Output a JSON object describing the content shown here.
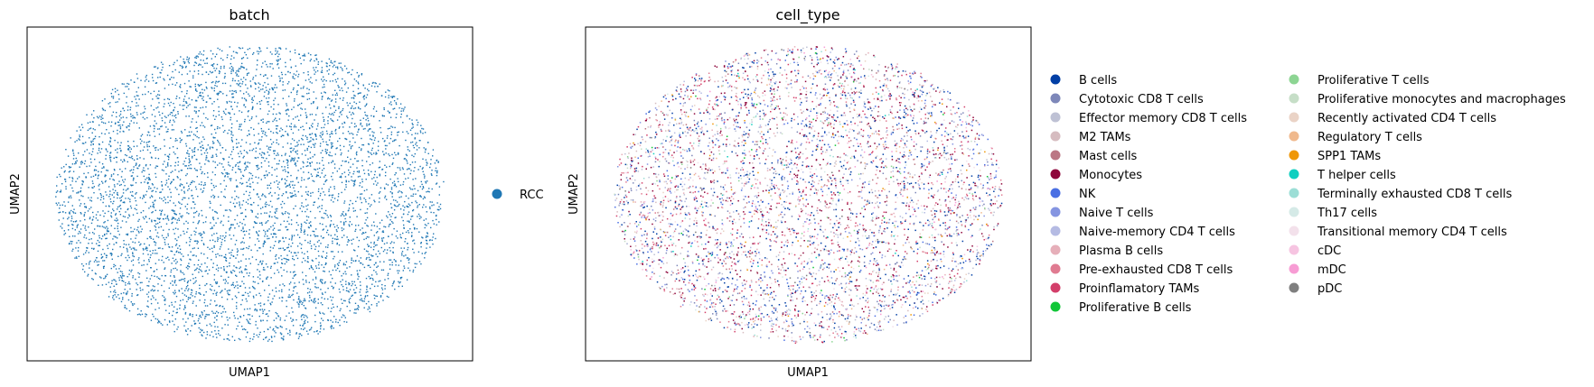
{
  "chart_data": [
    {
      "type": "scatter",
      "title": "batch",
      "xlabel": "UMAP1",
      "ylabel": "UMAP2",
      "grid": false,
      "ticks": false,
      "legend_placement": "right",
      "description_of_distribution": "single dense elliptical cloud of points",
      "series": [
        {
          "name": "RCC",
          "color": "#1f77b4"
        }
      ]
    },
    {
      "type": "scatter",
      "title": "cell_type",
      "xlabel": "UMAP1",
      "ylabel": "UMAP2",
      "grid": false,
      "ticks": false,
      "legend_placement": "right, two columns",
      "series": [
        {
          "name": "B cells",
          "color": "#023fa5"
        },
        {
          "name": "Cytotoxic CD8 T cells",
          "color": "#7d87b9"
        },
        {
          "name": "Effector memory CD8 T cells",
          "color": "#bec1d4"
        },
        {
          "name": "M2 TAMs",
          "color": "#d6bcc0"
        },
        {
          "name": "Mast cells",
          "color": "#bb7784"
        },
        {
          "name": "Monocytes",
          "color": "#8e063b"
        },
        {
          "name": "NK",
          "color": "#4a6fe3"
        },
        {
          "name": "Naive T cells",
          "color": "#8595e1"
        },
        {
          "name": "Naive-memory CD4 T cells",
          "color": "#b5bbe3"
        },
        {
          "name": "Plasma B cells",
          "color": "#e6afb9"
        },
        {
          "name": "Pre-exhausted CD8 T cells",
          "color": "#e07b91"
        },
        {
          "name": "Proinflamatory TAMs",
          "color": "#d33f6a"
        },
        {
          "name": "Proliferative B cells",
          "color": "#11c638"
        },
        {
          "name": "Proliferative T cells",
          "color": "#8dd593"
        },
        {
          "name": "Proliferative monocytes and macrophages",
          "color": "#c6dec7"
        },
        {
          "name": "Recently activated CD4 T cells",
          "color": "#ead3c6"
        },
        {
          "name": "Regulatory T cells",
          "color": "#f0b98d"
        },
        {
          "name": "SPP1 TAMs",
          "color": "#ef9708"
        },
        {
          "name": "T helper cells",
          "color": "#0fcfc0"
        },
        {
          "name": "Terminally exhausted CD8 T cells",
          "color": "#9cded6"
        },
        {
          "name": "Th17 cells",
          "color": "#d5eae7"
        },
        {
          "name": "Transitional memory CD4 T cells",
          "color": "#f3e1eb"
        },
        {
          "name": "cDC",
          "color": "#f6c4e1"
        },
        {
          "name": "mDC",
          "color": "#f79cd4"
        },
        {
          "name": "pDC",
          "color": "#7f7f7f"
        }
      ]
    }
  ]
}
